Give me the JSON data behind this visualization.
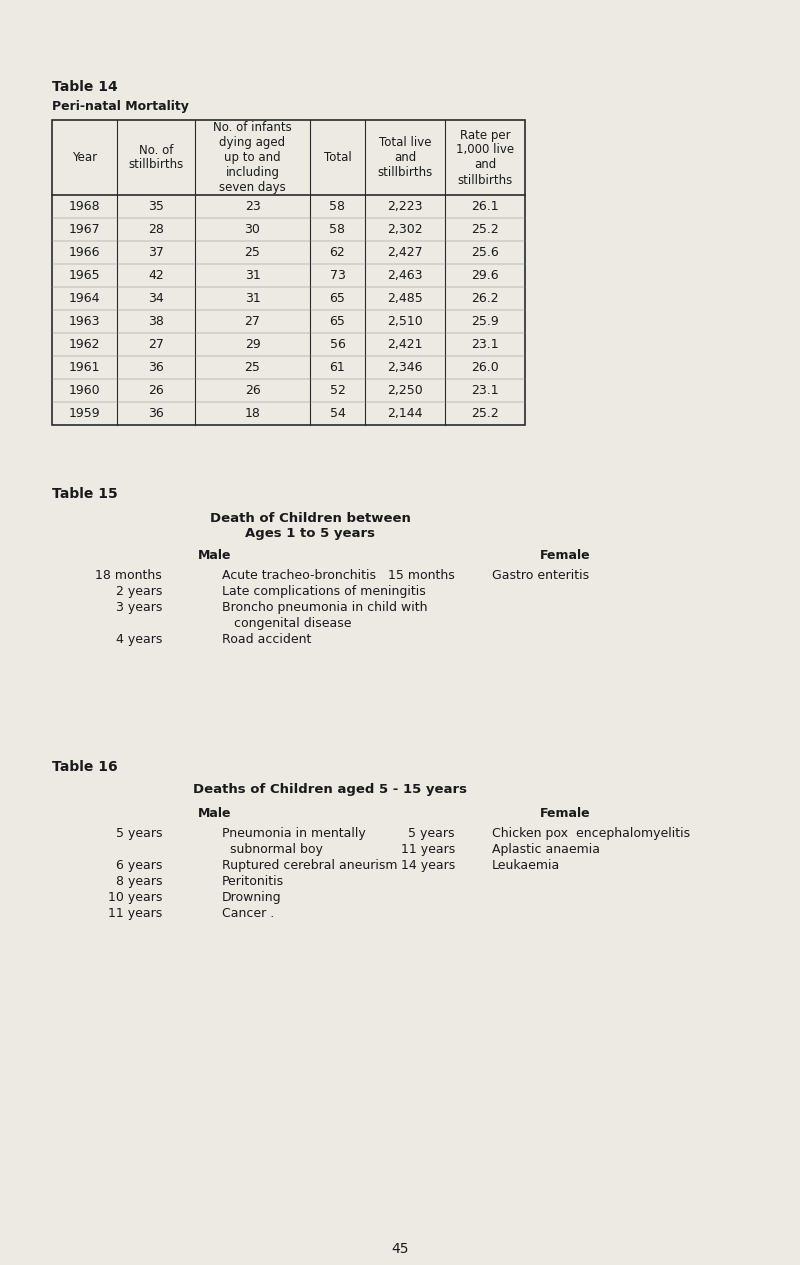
{
  "bg_color": "#edeae3",
  "text_color": "#1a1a1a",
  "page_number": "45",
  "table14_label": "Table 14",
  "table14_subtitle": "Peri-natal Mortality",
  "table14_headers": [
    "Year",
    "No. of\nstillbirths",
    "No. of infants\ndying aged\nup to and\nincluding\nseven days",
    "Total",
    "Total live\nand\nstillbirths",
    "Rate per\n1,000 live\nand\nstillbirths"
  ],
  "table14_rows": [
    [
      "1968",
      "35",
      "23",
      "58",
      "2,223",
      "26.1"
    ],
    [
      "1967",
      "28",
      "30",
      "58",
      "2,302",
      "25.2"
    ],
    [
      "1966",
      "37",
      "25",
      "62",
      "2,427",
      "25.6"
    ],
    [
      "1965",
      "42",
      "31",
      "73",
      "2,463",
      "29.6"
    ],
    [
      "1964",
      "34",
      "31",
      "65",
      "2,485",
      "26.2"
    ],
    [
      "1963",
      "38",
      "27",
      "65",
      "2,510",
      "25.9"
    ],
    [
      "1962",
      "27",
      "29",
      "56",
      "2,421",
      "23.1"
    ],
    [
      "1961",
      "36",
      "25",
      "61",
      "2,346",
      "26.0"
    ],
    [
      "1960",
      "26",
      "26",
      "52",
      "2,250",
      "23.1"
    ],
    [
      "1959",
      "36",
      "18",
      "54",
      "2,144",
      "25.2"
    ]
  ],
  "table15_label": "Table 15",
  "table15_title_line1": "Death of Children between",
  "table15_title_line2": "Ages 1 to 5 years",
  "table15_male_header": "Male",
  "table15_female_header": "Female",
  "table15_male_entries": [
    [
      "18 months",
      "Acute tracheo-bronchitis"
    ],
    [
      "2 years",
      "Late complications of meningitis"
    ],
    [
      "3 years",
      "Broncho pneumonia in child with",
      "   congenital disease"
    ],
    [
      "4 years",
      "Road accident"
    ]
  ],
  "table15_female_entries": [
    [
      "15 months",
      "Gastro enteritis"
    ]
  ],
  "table16_label": "Table 16",
  "table16_title": "Deaths of Children aged 5 - 15 years",
  "table16_male_header": "Male",
  "table16_female_header": "Female",
  "table16_male_entries": [
    [
      "5 years",
      "Pneumonia in mentally",
      "  subnormal boy"
    ],
    [
      "6 years",
      "Ruptured cerebral aneurism"
    ],
    [
      "8 years",
      "Peritonitis"
    ],
    [
      "10 years",
      "Drowning"
    ],
    [
      "11 years",
      "Cancer ."
    ]
  ],
  "table16_female_entries": [
    [
      "5 years",
      "Chicken pox  encephalomyelitis"
    ],
    [
      "11 years",
      "Aplastic anaemia"
    ],
    [
      "14 years",
      "Leukaemia"
    ]
  ]
}
